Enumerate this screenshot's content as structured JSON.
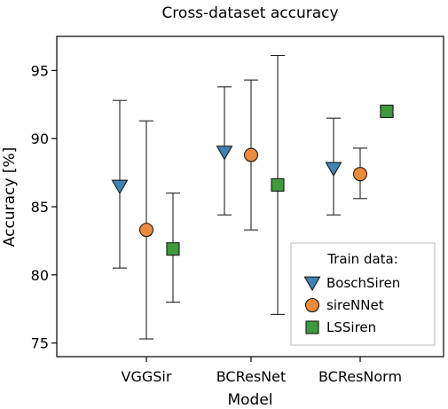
{
  "chart_data": {
    "type": "scatter",
    "title": "Cross-dataset accuracy",
    "xlabel": "Model",
    "ylabel": "Accuracy [%]",
    "categories": [
      "VGGSir",
      "BCResNet",
      "BCResNorm"
    ],
    "ylim": [
      74,
      97.5
    ],
    "yticks": [
      75,
      80,
      85,
      90,
      95
    ],
    "grid": false,
    "legend": {
      "title": "Train data:",
      "position": "bottom-right"
    },
    "series": [
      {
        "name": "BoschSiren",
        "marker": "triangle-down",
        "color": "#3f83b5",
        "points": [
          {
            "category": "VGGSir",
            "value": 86.5,
            "low": 80.5,
            "high": 92.8
          },
          {
            "category": "BCResNet",
            "value": 89.0,
            "low": 84.4,
            "high": 93.8
          },
          {
            "category": "BCResNorm",
            "value": 87.8,
            "low": 84.4,
            "high": 91.5
          }
        ]
      },
      {
        "name": "sireNNet",
        "marker": "circle",
        "color": "#ea8a3b",
        "points": [
          {
            "category": "VGGSir",
            "value": 83.3,
            "low": 75.3,
            "high": 91.3
          },
          {
            "category": "BCResNet",
            "value": 88.8,
            "low": 83.3,
            "high": 94.3
          },
          {
            "category": "BCResNorm",
            "value": 87.4,
            "low": 85.6,
            "high": 89.3
          }
        ]
      },
      {
        "name": "LSSiren",
        "marker": "square",
        "color": "#3d9a3d",
        "points": [
          {
            "category": "VGGSir",
            "value": 81.9,
            "low": 78.0,
            "high": 86.0
          },
          {
            "category": "BCResNet",
            "value": 86.6,
            "low": 77.1,
            "high": 96.1
          },
          {
            "category": "BCResNorm",
            "value": 92.0,
            "low": 91.7,
            "high": 92.3
          }
        ]
      }
    ]
  }
}
